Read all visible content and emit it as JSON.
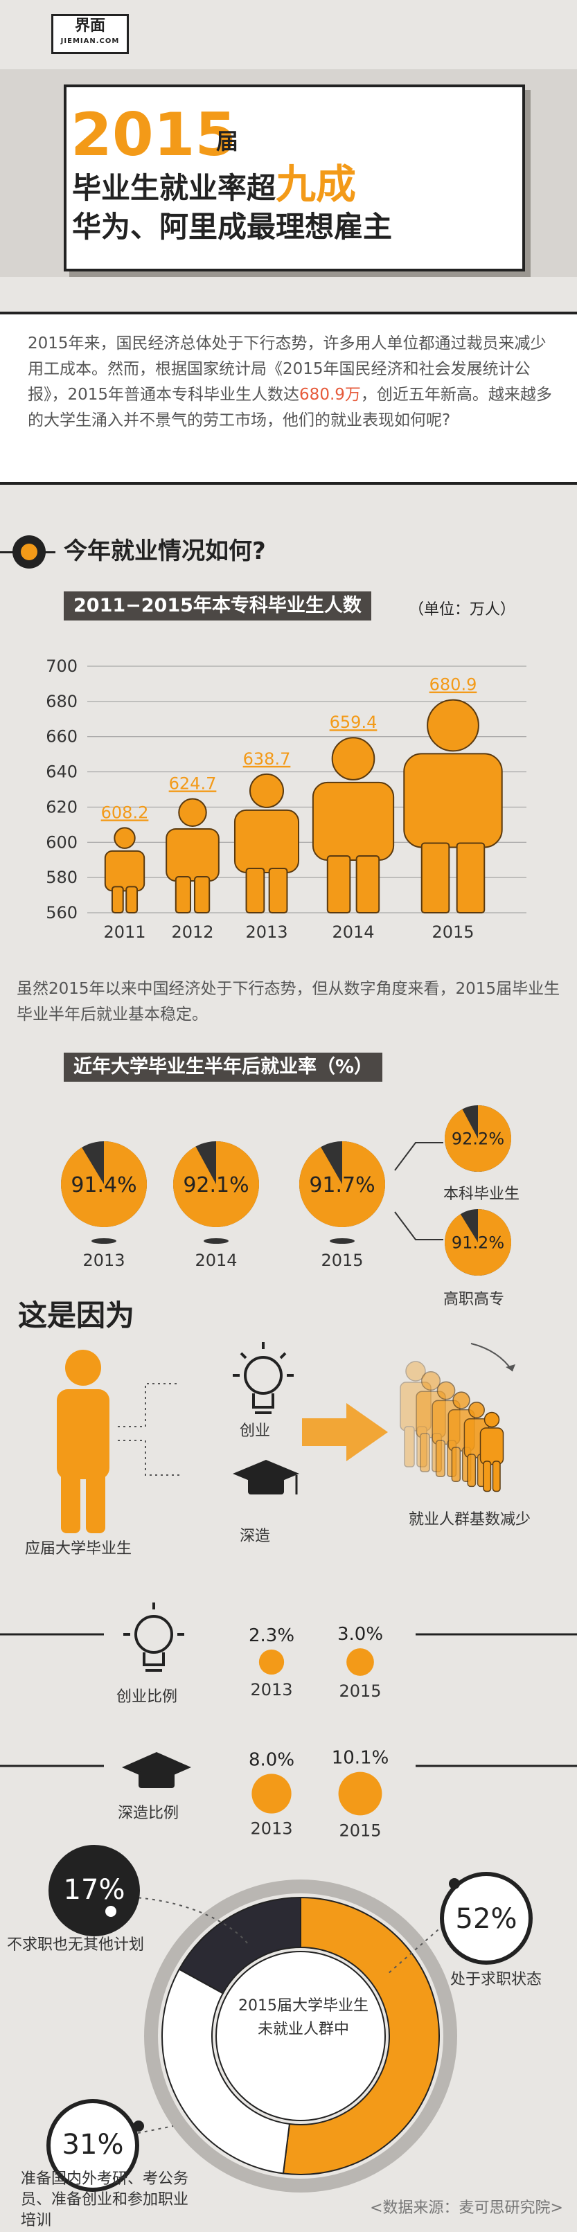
{
  "logo": {
    "main": "界面",
    "sub": "JIEMIAN.COM"
  },
  "title": {
    "year": "2015",
    "jie": "届",
    "line2_a": "毕业生就业率超",
    "line2_hl": "九成",
    "line3": "华为、阿里成最理想雇主"
  },
  "intro": {
    "part1": "2015年来，国民经济总体处于下行态势，许多用人单位都通过裁员来减少用工成本。然而，根据国家统计局《2015年国民经济和社会发展统计公报》，2015年普通本专科毕业生人数达",
    "highlight": "680.9万",
    "part2": "，创近五年新高。越来越多的大学生涌入并不景气的劳工市场，他们的就业表现如何呢?"
  },
  "section1_title": "今年就业情况如何?",
  "graduates_chart": {
    "tag": "2011−2015年本专科毕业生人数",
    "unit": "（单位：万人）"
  },
  "note1": "虽然2015年以来中国经济处于下行态势，但从数字角度来看，2015届毕业生毕业半年后就业基本稳定。",
  "employment_tag": "近年大学毕业生半年后就业率（%）",
  "employment_sub": {
    "bachelor": "本科毕业生",
    "vocational": "高职高专"
  },
  "reasons": {
    "title": "这是因为",
    "graduate_label": "应届大学毕业生",
    "entrepreneur": "创业",
    "study": "深造",
    "result": "就业人群基数减少"
  },
  "ratios": {
    "entre_label": "创业比例",
    "study_label": "深造比例"
  },
  "donut_center": "2015届大学毕业生未就业人群中",
  "donut_labels": {
    "p52": "52%",
    "p52_label": "处于求职状态",
    "p17": "17%",
    "p17_label": "不求职也无其他计划",
    "p31": "31%",
    "p31_label": "准备国内外考研、考公务员、准备创业和参加职业培训"
  },
  "source": "<数据来源：麦可思研究院>",
  "colors": {
    "accent": "#f39a18",
    "dark": "#222222",
    "gray": "#4c4845",
    "bg": "#e8e6e3"
  },
  "chart_data": [
    {
      "type": "bar",
      "title": "2011−2015年本专科毕业生人数",
      "ylabel": "（单位：万人）",
      "categories": [
        "2011",
        "2012",
        "2013",
        "2014",
        "2015"
      ],
      "values": [
        608.2,
        624.7,
        638.7,
        659.4,
        680.9
      ],
      "yticks": [
        560,
        580,
        600,
        620,
        640,
        660,
        680,
        700
      ],
      "ylim": [
        560,
        700
      ],
      "grid": true
    },
    {
      "type": "pie",
      "title": "近年大学毕业生半年后就业率（%）",
      "categories": [
        "2013",
        "2014",
        "2015"
      ],
      "values": [
        91.4,
        92.1,
        91.7
      ],
      "sub": [
        {
          "category": "本科毕业生",
          "value": 92.2
        },
        {
          "category": "高职高专",
          "value": 91.2
        }
      ]
    },
    {
      "type": "bar",
      "title": "创业比例",
      "categories": [
        "2013",
        "2015"
      ],
      "values": [
        2.3,
        3.0
      ]
    },
    {
      "type": "bar",
      "title": "深造比例",
      "categories": [
        "2013",
        "2015"
      ],
      "values": [
        8.0,
        10.1
      ]
    },
    {
      "type": "pie",
      "title": "2015届大学毕业生未就业人群中",
      "categories": [
        "处于求职状态",
        "准备国内外考研、考公务员、准备创业和参加职业培训",
        "不求职也无其他计划"
      ],
      "values": [
        52,
        31,
        17
      ]
    }
  ]
}
